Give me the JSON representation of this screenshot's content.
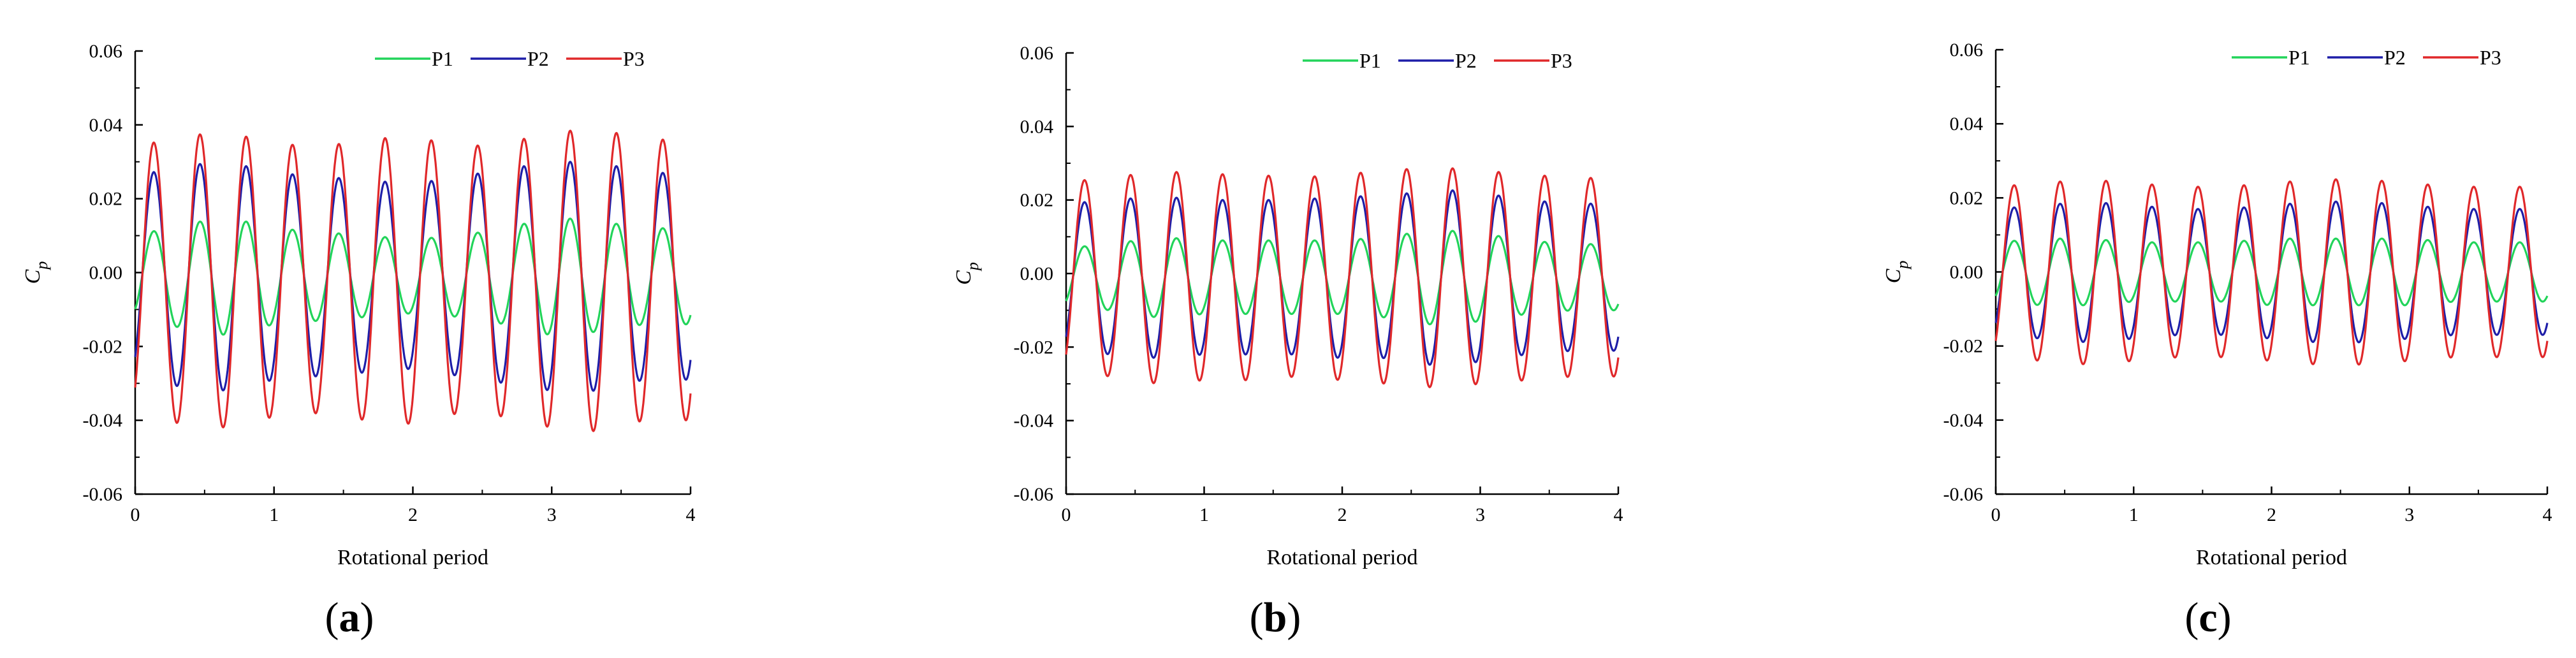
{
  "figure_label_parens": [
    "(",
    ")"
  ],
  "chart_data": [
    {
      "type": "line",
      "panel_label": "a",
      "xlabel": "Rotational period",
      "ylabel_main": "C",
      "ylabel_sub": "p",
      "xlim": [
        0,
        4
      ],
      "ylim": [
        -0.06,
        0.06
      ],
      "xticks": [
        "0",
        "1",
        "2",
        "3",
        "4"
      ],
      "yticks": [
        "-0.06",
        "-0.04",
        "-0.02",
        "0.00",
        "0.02",
        "0.04",
        "0.06"
      ],
      "legend_position": "top-right",
      "cycles": 12,
      "phase": 0.4,
      "series": [
        {
          "name": "P1",
          "color": "#22d45a",
          "offset": -0.001,
          "amplitudes": [
            0.011,
            0.014,
            0.016,
            0.013,
            0.012,
            0.011,
            0.01,
            0.011,
            0.013,
            0.016,
            0.015,
            0.013
          ]
        },
        {
          "name": "P2",
          "color": "#1e1ea8",
          "offset": -0.001,
          "amplitudes": [
            0.027,
            0.03,
            0.031,
            0.028,
            0.027,
            0.026,
            0.025,
            0.027,
            0.029,
            0.031,
            0.031,
            0.028
          ]
        },
        {
          "name": "P3",
          "color": "#e0282a",
          "offset": -0.002,
          "amplitudes": [
            0.036,
            0.039,
            0.04,
            0.037,
            0.036,
            0.038,
            0.039,
            0.036,
            0.037,
            0.04,
            0.041,
            0.038
          ]
        }
      ]
    },
    {
      "type": "line",
      "panel_label": "b",
      "xlabel": "Rotational period",
      "ylabel_main": "C",
      "ylabel_sub": "p",
      "xlim": [
        0,
        4
      ],
      "ylim": [
        -0.06,
        0.06
      ],
      "xticks": [
        "0",
        "1",
        "2",
        "3",
        "4"
      ],
      "yticks": [
        "-0.06",
        "-0.04",
        "-0.02",
        "0.00",
        "0.02",
        "0.04",
        "0.06"
      ],
      "legend_position": "top-right",
      "cycles": 12,
      "phase": 0.4,
      "series": [
        {
          "name": "P1",
          "color": "#22d45a",
          "offset": -0.001,
          "amplitudes": [
            0.008,
            0.009,
            0.011,
            0.01,
            0.01,
            0.01,
            0.01,
            0.011,
            0.013,
            0.012,
            0.01,
            0.009
          ]
        },
        {
          "name": "P2",
          "color": "#1e1ea8",
          "offset": -0.001,
          "amplitudes": [
            0.02,
            0.021,
            0.022,
            0.021,
            0.021,
            0.021,
            0.022,
            0.022,
            0.024,
            0.023,
            0.021,
            0.02
          ]
        },
        {
          "name": "P3",
          "color": "#e0282a",
          "offset": -0.001,
          "amplitudes": [
            0.026,
            0.027,
            0.029,
            0.028,
            0.028,
            0.027,
            0.028,
            0.029,
            0.03,
            0.029,
            0.028,
            0.027
          ]
        }
      ]
    },
    {
      "type": "line",
      "panel_label": "c",
      "xlabel": "Rotational period",
      "ylabel_main": "C",
      "ylabel_sub": "p",
      "xlim": [
        0,
        4
      ],
      "ylim": [
        -0.06,
        0.06
      ],
      "xticks": [
        "0",
        "1",
        "2",
        "3",
        "4"
      ],
      "yticks": [
        "-0.06",
        "-0.04",
        "-0.02",
        "0.00",
        "0.02",
        "0.04",
        "0.06"
      ],
      "legend_position": "top-right",
      "cycles": 12,
      "phase": 0.4,
      "series": [
        {
          "name": "P1",
          "color": "#22d45a",
          "offset": 0.0,
          "amplitudes": [
            0.008,
            0.009,
            0.009,
            0.008,
            0.008,
            0.008,
            0.009,
            0.009,
            0.009,
            0.009,
            0.008,
            0.008
          ]
        },
        {
          "name": "P2",
          "color": "#1e1ea8",
          "offset": 0.0,
          "amplitudes": [
            0.017,
            0.018,
            0.019,
            0.018,
            0.017,
            0.017,
            0.018,
            0.019,
            0.019,
            0.018,
            0.017,
            0.017
          ]
        },
        {
          "name": "P3",
          "color": "#e0282a",
          "offset": 0.0,
          "amplitudes": [
            0.023,
            0.024,
            0.025,
            0.024,
            0.023,
            0.023,
            0.024,
            0.025,
            0.025,
            0.024,
            0.023,
            0.023
          ]
        }
      ]
    }
  ]
}
